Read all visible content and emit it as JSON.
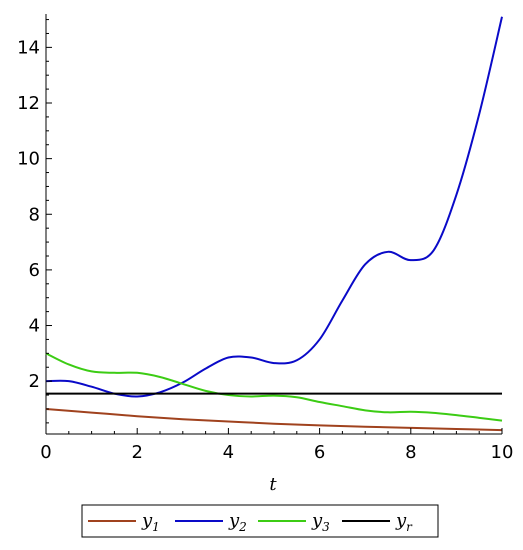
{
  "chart_data": {
    "type": "line",
    "title": "",
    "xlabel": "t",
    "ylabel": "",
    "xlim": [
      0,
      10
    ],
    "ylim": [
      0.1,
      15.2
    ],
    "x_ticks": [
      0,
      2,
      4,
      6,
      8,
      10
    ],
    "y_ticks": [
      2,
      4,
      6,
      8,
      10,
      12,
      14
    ],
    "x_tick_labels": [
      "0",
      "2",
      "4",
      "6",
      "8",
      "10"
    ],
    "y_tick_labels": [
      "2",
      "4",
      "6",
      "8",
      "10",
      "12",
      "14"
    ],
    "grid": false,
    "legend_position": "bottom",
    "series": [
      {
        "name": "y",
        "subscript": "1",
        "color": "#a0421e",
        "x": [
          0,
          1,
          2,
          3,
          4,
          5,
          6,
          7,
          8,
          9,
          10
        ],
        "y": [
          1.0,
          0.87,
          0.74,
          0.63,
          0.55,
          0.47,
          0.41,
          0.36,
          0.32,
          0.28,
          0.24
        ]
      },
      {
        "name": "y",
        "subscript": "2",
        "color": "#0a0ac8",
        "x": [
          0,
          0.5,
          1,
          1.5,
          2,
          2.5,
          3,
          3.5,
          4,
          4.5,
          5,
          5.5,
          6,
          6.5,
          7,
          7.5,
          8,
          8.5,
          9,
          9.5,
          10
        ],
        "y": [
          2.0,
          2.0,
          1.8,
          1.55,
          1.45,
          1.6,
          1.95,
          2.45,
          2.85,
          2.85,
          2.65,
          2.75,
          3.5,
          4.9,
          6.2,
          6.65,
          6.35,
          6.7,
          8.7,
          11.6,
          15.1
        ]
      },
      {
        "name": "y",
        "subscript": "3",
        "color": "#3ccc14",
        "x": [
          0,
          0.5,
          1,
          1.5,
          2,
          2.5,
          3,
          3.5,
          4,
          4.5,
          5,
          5.5,
          6,
          6.5,
          7,
          7.5,
          8,
          8.5,
          9,
          9.5,
          10
        ],
        "y": [
          3.0,
          2.6,
          2.35,
          2.3,
          2.3,
          2.15,
          1.9,
          1.65,
          1.5,
          1.45,
          1.48,
          1.42,
          1.25,
          1.1,
          0.95,
          0.88,
          0.9,
          0.86,
          0.78,
          0.68,
          0.58
        ]
      },
      {
        "name": "y",
        "subscript": "r",
        "color": "#000000",
        "x": [
          0,
          10
        ],
        "y": [
          1.55,
          1.55
        ]
      }
    ]
  }
}
